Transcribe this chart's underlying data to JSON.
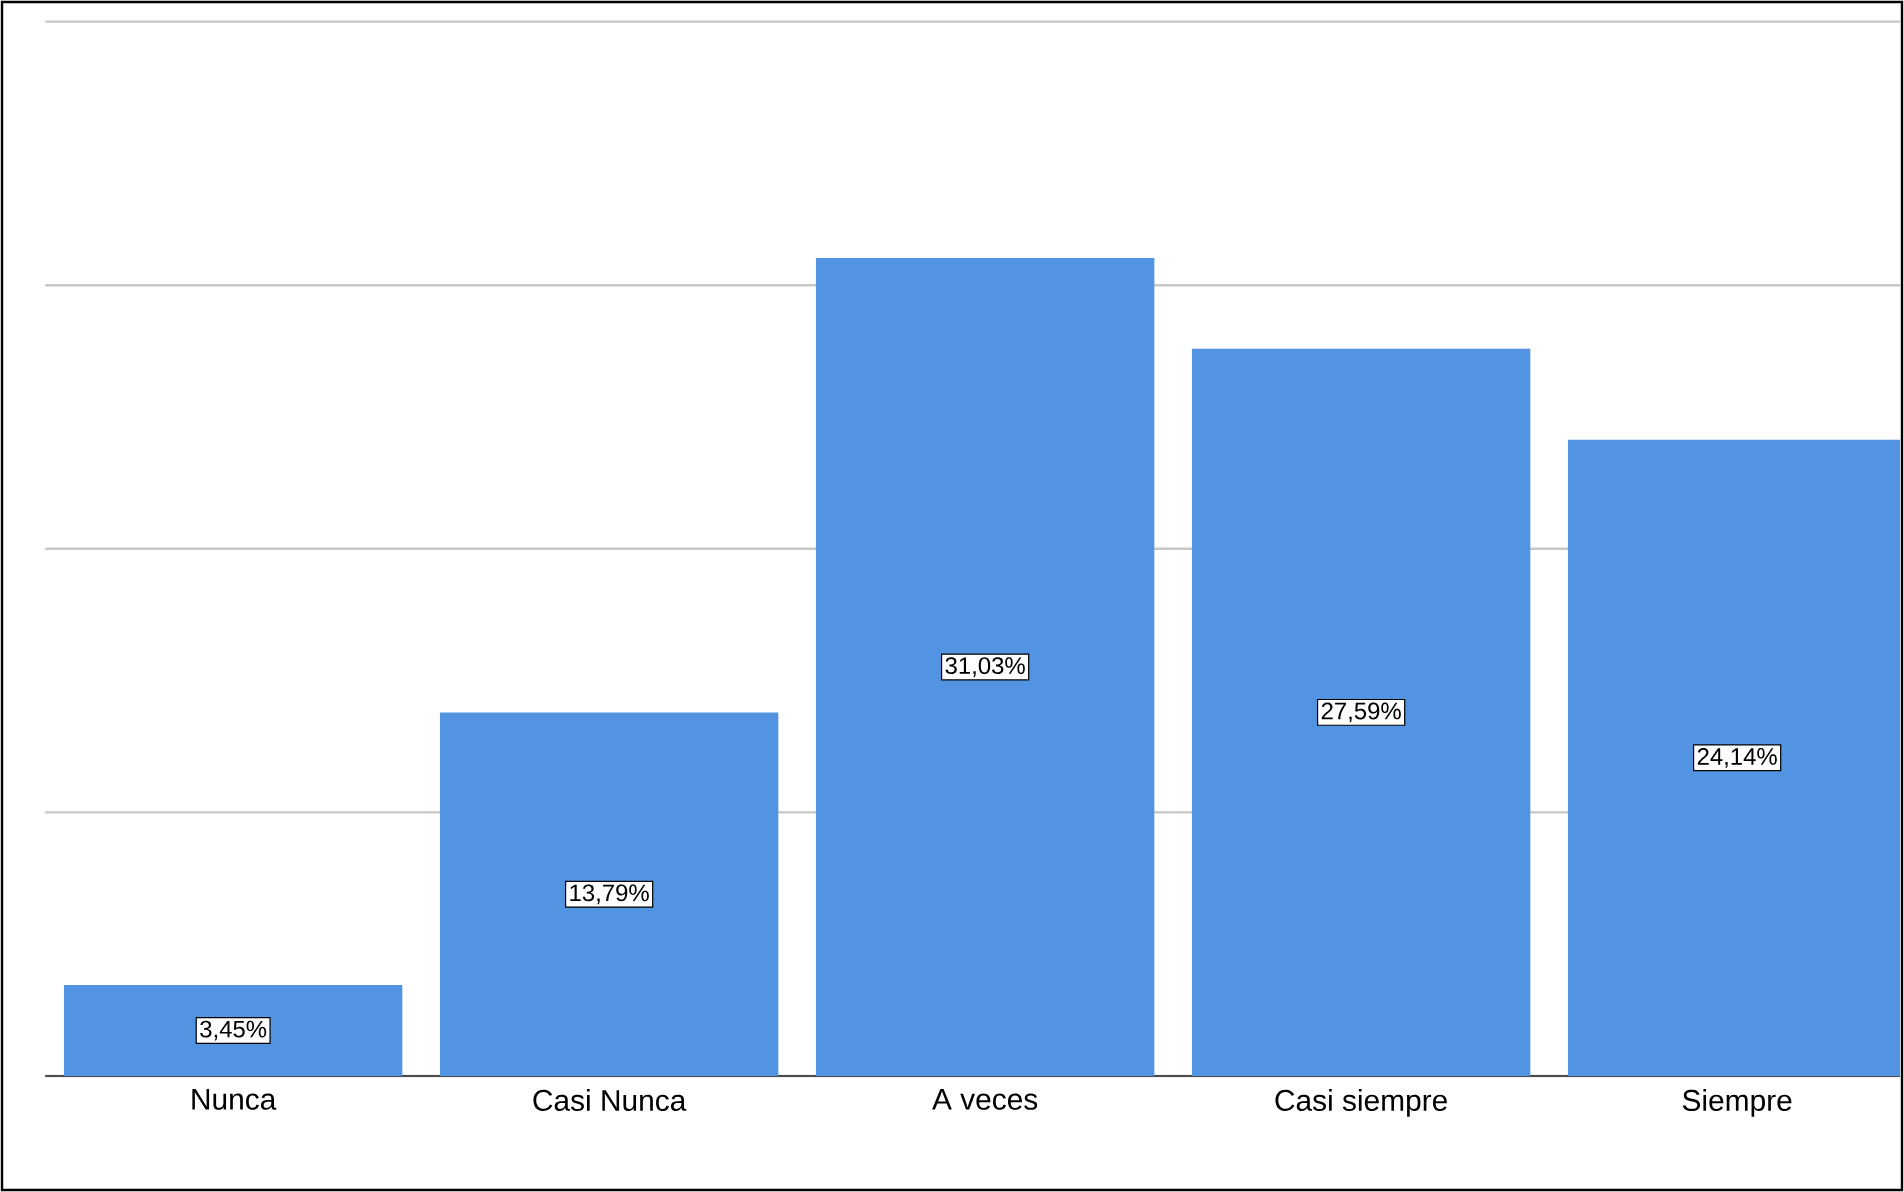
{
  "chart_data": {
    "type": "bar",
    "categories": [
      "Nunca",
      "Casi Nunca",
      "A veces",
      "Casi siempre",
      "Siempre"
    ],
    "values": [
      3.45,
      13.79,
      31.03,
      27.59,
      24.14
    ],
    "value_labels": [
      "3,45%",
      "13,79%",
      "31,03%",
      "27,59%",
      "24,14%"
    ],
    "color": "#5294e2",
    "grid": "y",
    "tick_labels": "x"
  }
}
